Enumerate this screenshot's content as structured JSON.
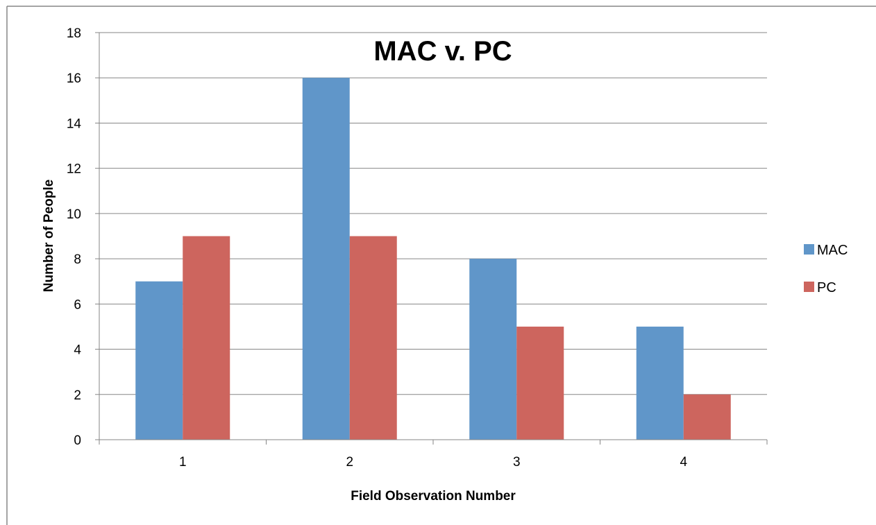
{
  "chart_data": {
    "type": "bar",
    "title": "MAC v. PC",
    "xlabel": "Field Observation Number",
    "ylabel": "Number of People",
    "categories": [
      "1",
      "2",
      "3",
      "4"
    ],
    "series": [
      {
        "name": "MAC",
        "values": [
          7,
          16,
          8,
          5
        ],
        "color": "#6096C9"
      },
      {
        "name": "PC",
        "values": [
          9,
          9,
          5,
          2
        ],
        "color": "#CD655E"
      }
    ],
    "ylim": [
      0,
      18
    ],
    "yticks": [
      0,
      2,
      4,
      6,
      8,
      10,
      12,
      14,
      16,
      18
    ],
    "grid": true,
    "legend_position": "right"
  }
}
